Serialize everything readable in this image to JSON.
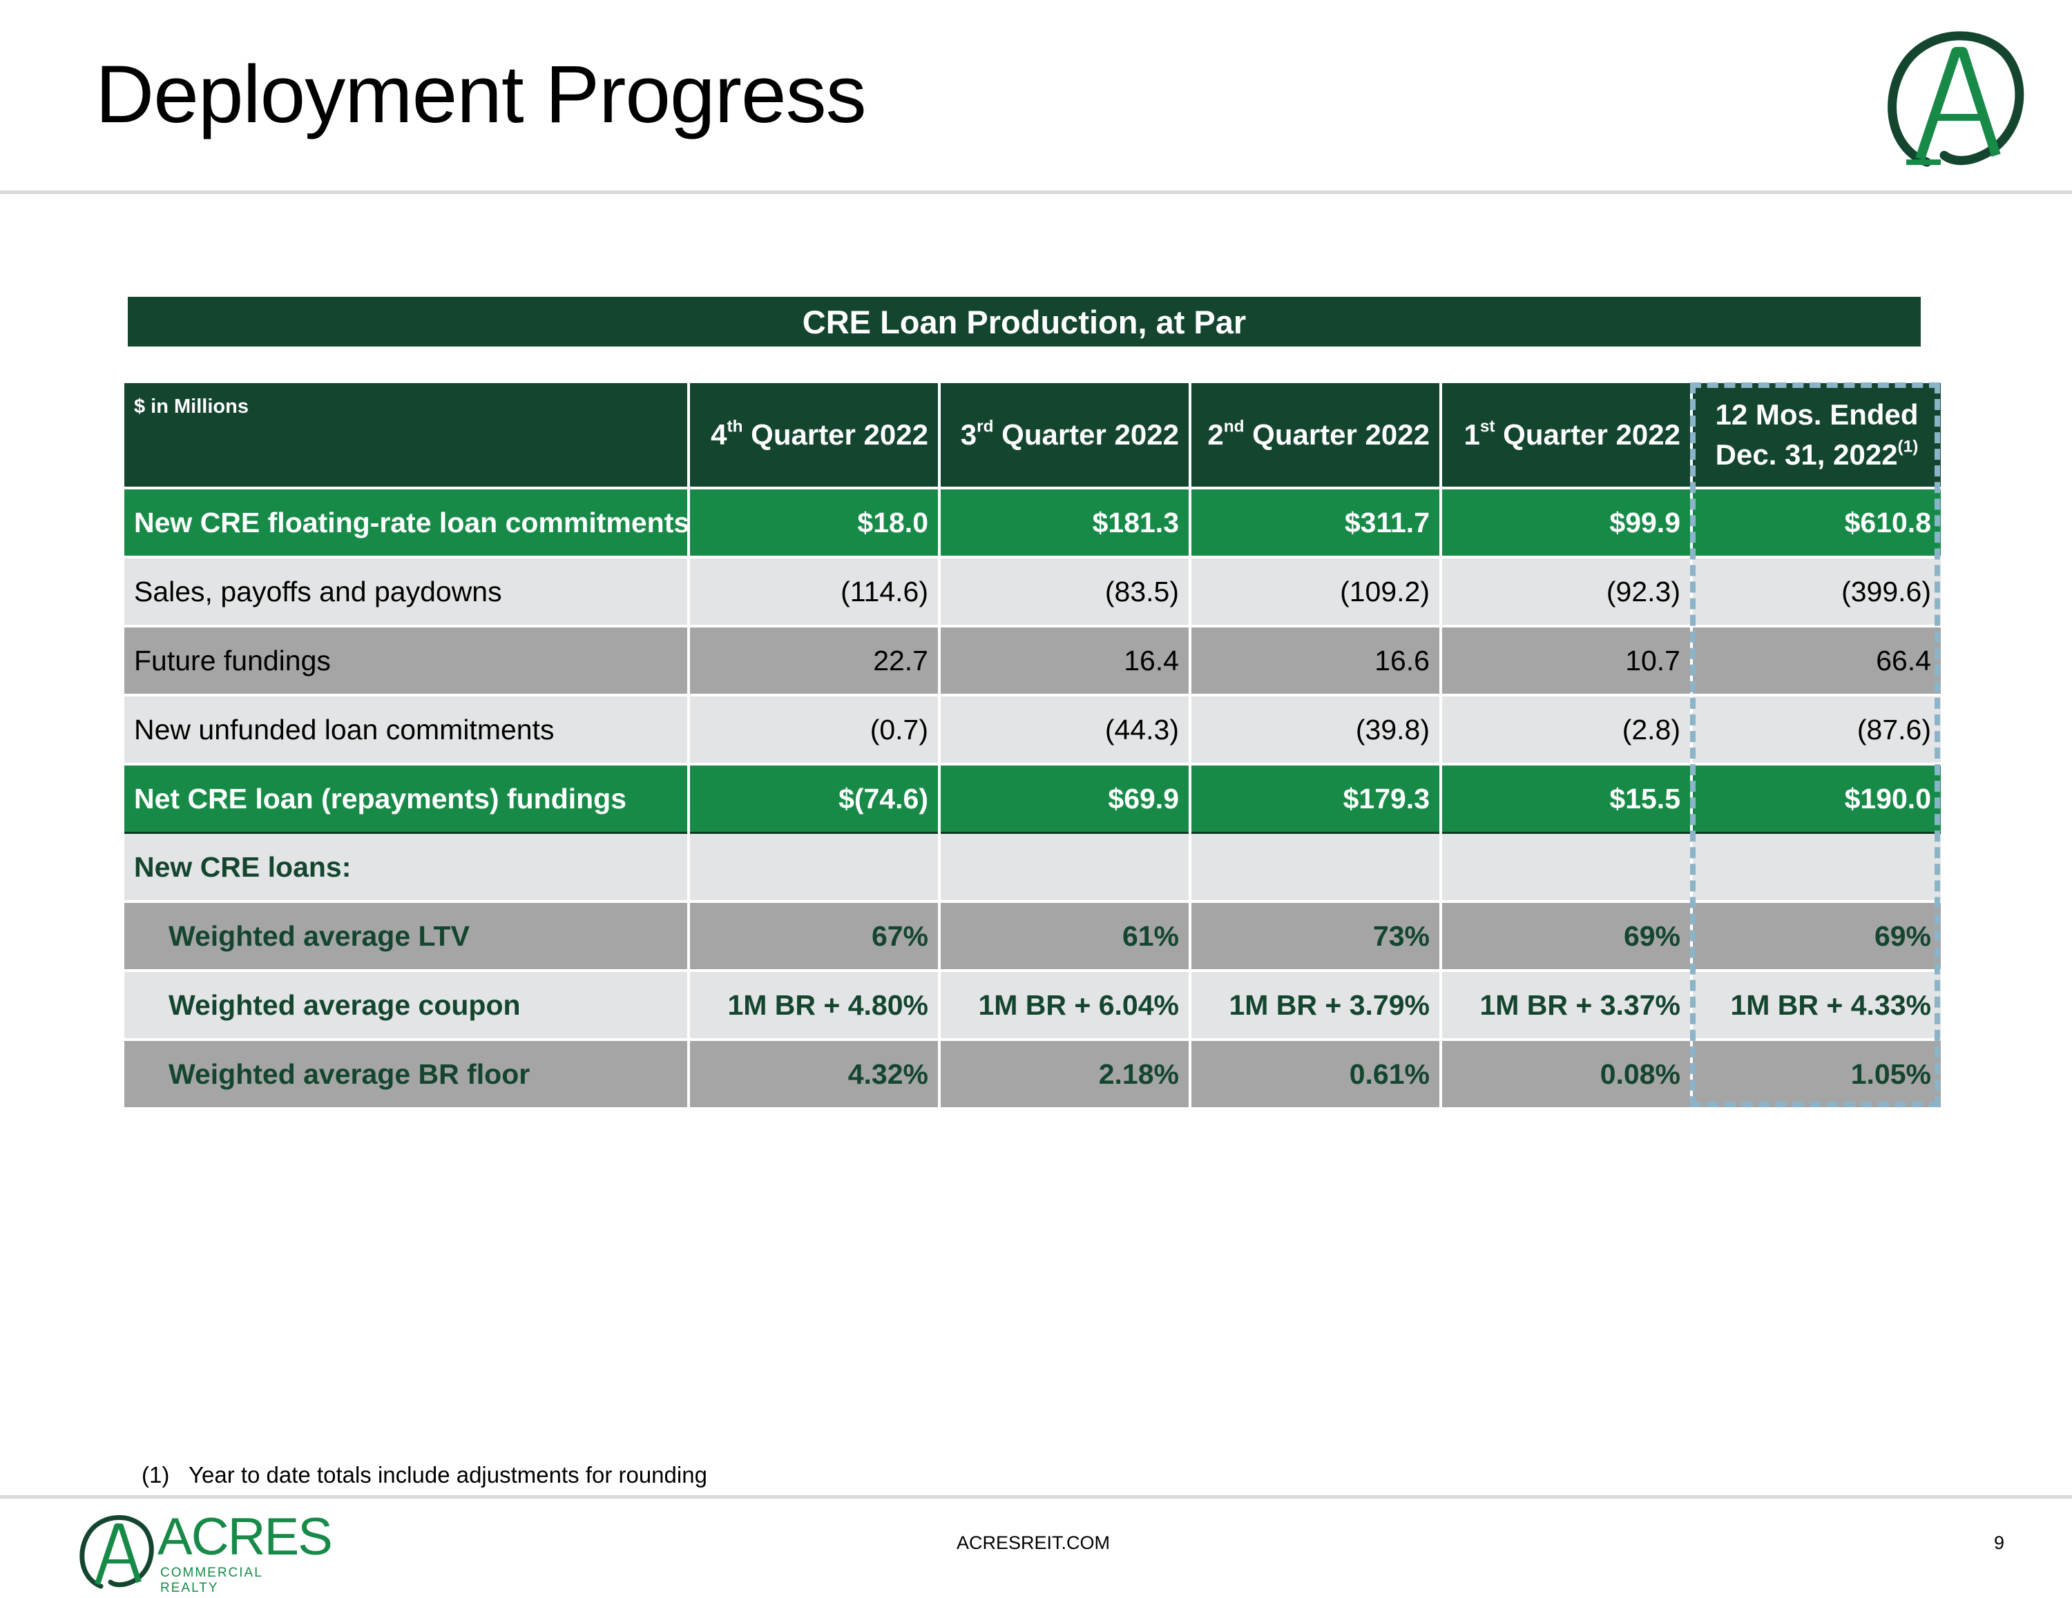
{
  "title": "Deployment Progress",
  "band_title": "CRE Loan Production, at Par",
  "header": {
    "unit": "$ in Millions",
    "q4_num": "4",
    "q4_sup": "th",
    "q4_rest": " Quarter 2022",
    "q3_num": "3",
    "q3_sup": "rd",
    "q3_rest": " Quarter 2022",
    "q2_num": "2",
    "q2_sup": "nd",
    "q2_rest": " Quarter 2022",
    "q1_num": "1",
    "q1_sup": "st",
    "q1_rest": " Quarter 2022",
    "ttm_line1": "12 Mos. Ended",
    "ttm_line2": "Dec. 31, 2022",
    "ttm_sup": "(1)"
  },
  "rows": [
    {
      "label": "New CRE floating-rate loan commitments",
      "values": [
        "$18.0",
        "$181.3",
        "$311.7",
        "$99.9",
        "$610.8"
      ]
    },
    {
      "label": "Sales, payoffs and paydowns",
      "values": [
        "(114.6)",
        "(83.5)",
        "(109.2)",
        "(92.3)",
        "(399.6)"
      ]
    },
    {
      "label": "Future fundings",
      "values": [
        "22.7",
        "16.4",
        "16.6",
        "10.7",
        "66.4"
      ]
    },
    {
      "label": "New unfunded loan commitments",
      "values": [
        "(0.7)",
        "(44.3)",
        "(39.8)",
        "(2.8)",
        "(87.6)"
      ]
    },
    {
      "label": "Net CRE loan (repayments) fundings",
      "values": [
        "$(74.6)",
        "$69.9",
        "$179.3",
        "$15.5",
        "$190.0"
      ]
    },
    {
      "label": "New CRE loans:",
      "values": [
        "",
        "",
        "",
        "",
        ""
      ]
    },
    {
      "label": "Weighted average LTV",
      "values": [
        "67%",
        "61%",
        "73%",
        "69%",
        "69%"
      ]
    },
    {
      "label": "Weighted average coupon",
      "values": [
        "1M BR + 4.80%",
        "1M BR + 6.04%",
        "1M BR + 3.79%",
        "1M BR + 3.37%",
        "1M BR + 4.33%"
      ]
    },
    {
      "label": "Weighted average BR floor",
      "values": [
        "4.32%",
        "2.18%",
        "0.61%",
        "0.08%",
        "1.05%"
      ]
    }
  ],
  "footnote": {
    "num": "(1)",
    "text": "Year to date totals include adjustments for rounding"
  },
  "footer": {
    "logo_word": "ACRES",
    "logo_sub": "COMMERCIAL REALTY",
    "website": "ACRESREIT.COM",
    "page": "9"
  },
  "colors": {
    "dark_green": "#14452f",
    "green": "#178a48",
    "light_gray": "#e3e4e5",
    "mid_gray": "#a5a5a5",
    "dash_blue": "#8bb4c9"
  }
}
